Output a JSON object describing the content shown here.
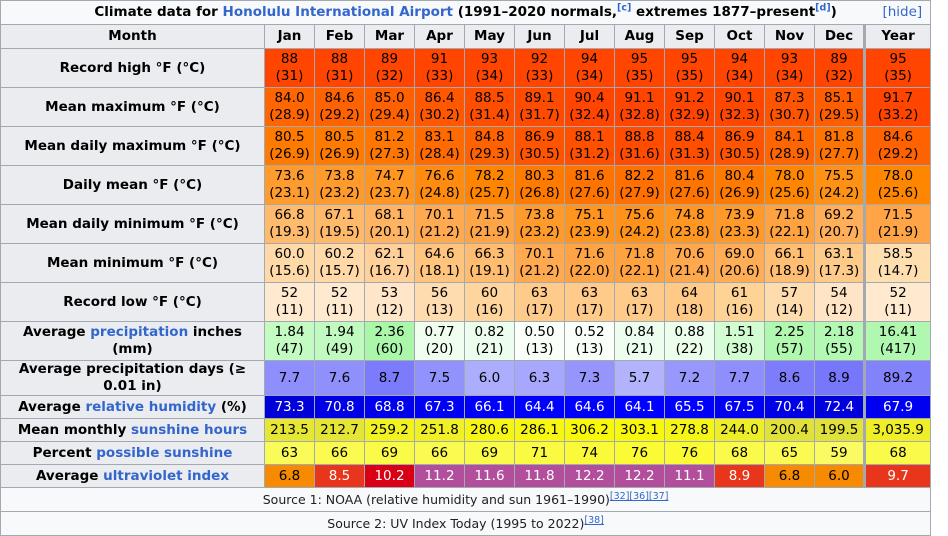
{
  "caption": {
    "prefix": "Climate data for ",
    "link": "Honolulu International Airport",
    "suffix1": " (1991–2020 normals,",
    "ref1": "[c]",
    "suffix2": " extremes 1877–present",
    "ref2": "[d]",
    "suffix3": ")",
    "hide": "[hide]"
  },
  "header": {
    "month_label": "Month",
    "months": [
      "Jan",
      "Feb",
      "Mar",
      "Apr",
      "May",
      "Jun",
      "Jul",
      "Aug",
      "Sep",
      "Oct",
      "Nov",
      "Dec"
    ],
    "year_label": "Year"
  },
  "rows": [
    {
      "label": "Record high °F (°C)",
      "two": true,
      "v": [
        "88",
        "88",
        "89",
        "91",
        "93",
        "92",
        "94",
        "95",
        "95",
        "94",
        "93",
        "89",
        "95"
      ],
      "c": [
        "(31)",
        "(31)",
        "(32)",
        "(33)",
        "(34)",
        "(33)",
        "(34)",
        "(35)",
        "(35)",
        "(34)",
        "(34)",
        "(32)",
        "(35)"
      ],
      "bg": [
        "#ff4500",
        "#ff4500",
        "#ff4500",
        "#ff4500",
        "#ff4500",
        "#ff4500",
        "#ff4500",
        "#ff4500",
        "#ff4500",
        "#ff4500",
        "#ff4500",
        "#ff4500",
        "#ff4500"
      ]
    },
    {
      "label": "Mean maximum °F (°C)",
      "two": true,
      "v": [
        "84.0",
        "84.6",
        "85.0",
        "86.4",
        "88.5",
        "89.1",
        "90.4",
        "91.1",
        "91.2",
        "90.1",
        "87.3",
        "85.1",
        "91.7"
      ],
      "c": [
        "(28.9)",
        "(29.2)",
        "(29.4)",
        "(30.2)",
        "(31.4)",
        "(31.7)",
        "(32.4)",
        "(32.8)",
        "(32.9)",
        "(32.3)",
        "(30.7)",
        "(29.5)",
        "(33.2)"
      ],
      "bg": [
        "#ff6500",
        "#ff6200",
        "#ff6000",
        "#ff5800",
        "#ff4e00",
        "#ff4b00",
        "#ff4500",
        "#ff4500",
        "#ff4500",
        "#ff4700",
        "#ff5400",
        "#ff5e00",
        "#ff4500"
      ]
    },
    {
      "label": "Mean daily maximum °F (°C)",
      "two": true,
      "v": [
        "80.5",
        "80.5",
        "81.2",
        "83.1",
        "84.8",
        "86.9",
        "88.1",
        "88.8",
        "88.4",
        "86.9",
        "84.1",
        "81.8",
        " 84.6"
      ],
      "c": [
        "(26.9)",
        "(26.9)",
        "(27.3)",
        "(28.4)",
        "(29.3)",
        "(30.5)",
        "(31.2)",
        "(31.6)",
        "(31.3)",
        "(30.5)",
        "(28.9)",
        "(27.7)",
        "(29.2)"
      ],
      "bg": [
        "#ff7a00",
        "#ff7a00",
        "#ff7600",
        "#ff6b00",
        "#ff6200",
        "#ff5500",
        "#ff5000",
        "#ff4c00",
        "#ff4e00",
        "#ff5500",
        "#ff6500",
        "#ff7300",
        "#ff6200"
      ]
    },
    {
      "label": "Daily mean °F (°C)",
      "two": true,
      "v": [
        "73.6",
        "73.8",
        "74.7",
        "76.6",
        "78.2",
        "80.3",
        "81.6",
        "82.2",
        "81.6",
        "80.4",
        "78.0",
        "75.5",
        "78.0"
      ],
      "c": [
        "(23.1)",
        "(23.2)",
        "(23.7)",
        "(24.8)",
        "(25.7)",
        "(26.8)",
        "(27.6)",
        "(27.9)",
        "(27.6)",
        "(26.9)",
        "(25.6)",
        "(24.2)",
        "(25.6)"
      ],
      "bg": [
        "#ff9c2f",
        "#ff9b2c",
        "#ff9722",
        "#ff8b0f",
        "#ff8400",
        "#ff7b00",
        "#ff7400",
        "#ff7000",
        "#ff7400",
        "#ff7a00",
        "#ff8600",
        "#ff9215",
        "#ff8600"
      ]
    },
    {
      "label": "Mean daily minimum °F (°C)",
      "two": true,
      "v": [
        "66.8",
        "67.1",
        "68.1",
        "70.1",
        "71.5",
        "73.8",
        "75.1",
        "75.6",
        "74.8",
        "73.9",
        "71.8",
        "69.2",
        "71.5"
      ],
      "c": [
        "(19.3)",
        "(19.5)",
        "(20.1)",
        "(21.2)",
        "(21.9)",
        "(23.2)",
        "(23.9)",
        "(24.2)",
        "(23.8)",
        "(23.3)",
        "(22.1)",
        "(20.7)",
        "(21.9)"
      ],
      "bg": [
        "#ffbb6d",
        "#ffb96b",
        "#ffb463",
        "#ffaa51",
        "#ffa547",
        "#ff9b2c",
        "#ff951f",
        "#ff921a",
        "#ff9722",
        "#ff9a2a",
        "#ffa341",
        "#ffaf59",
        "#ffa547"
      ]
    },
    {
      "label": "Mean minimum °F (°C)",
      "two": true,
      "v": [
        "60.0",
        "60.2",
        "62.1",
        "64.6",
        "66.3",
        "70.1",
        "71.6",
        "71.8",
        "70.6",
        "69.0",
        "66.1",
        "63.1",
        "58.5"
      ],
      "c": [
        "(15.6)",
        "(15.7)",
        "(16.7)",
        "(18.1)",
        "(19.1)",
        "(21.2)",
        "(22.0)",
        "(22.1)",
        "(21.4)",
        "(20.6)",
        "(18.9)",
        "(17.3)",
        "(14.7)"
      ],
      "bg": [
        "#ffdaa8",
        "#ffd9a7",
        "#ffd099",
        "#ffc57f",
        "#ffbd71",
        "#ffaa51",
        "#ffa444",
        "#ffa341",
        "#ffa84e",
        "#ffae57",
        "#ffbe72",
        "#ffcb8b",
        "#ffdfb0"
      ]
    },
    {
      "label": "Record low °F (°C)",
      "two": true,
      "v": [
        "52",
        "52",
        "53",
        "56",
        "60",
        "63",
        "63",
        "63",
        "64",
        "61",
        "57",
        "54",
        "52"
      ],
      "c": [
        "(11)",
        "(11)",
        "(12)",
        "(13)",
        "(16)",
        "(17)",
        "(17)",
        "(17)",
        "(18)",
        "(16)",
        "(14)",
        "(12)",
        "(11)"
      ],
      "bg": [
        "#ffe9cf",
        "#ffe9cf",
        "#ffe6c8",
        "#ffdcaf",
        "#ffd49d",
        "#ffcb8b",
        "#ffcb8b",
        "#ffcb8b",
        "#ffc988",
        "#ffd396",
        "#ffdcad",
        "#ffe5c6",
        "#ffe9cf"
      ]
    },
    {
      "label": "Average precipitation inches (mm)",
      "label_pre": "Average ",
      "label_link": "precipitation",
      "label_post": " inches (mm)",
      "two": true,
      "v": [
        "1.84",
        "1.94",
        "2.36",
        "0.77",
        "0.82",
        "0.50",
        "0.52",
        "0.84",
        "0.88",
        "1.51",
        "2.25",
        "2.18",
        "16.41"
      ],
      "c": [
        "(47)",
        "(49)",
        "(60)",
        "(20)",
        "(21)",
        "(13)",
        "(13)",
        "(21)",
        "(22)",
        "(38)",
        "(57)",
        "(55)",
        "(417)"
      ],
      "bg": [
        "#c3fbc3",
        "#c0fac0",
        "#aaf7aa",
        "#f0fef0",
        "#eefeee",
        "#fafffa",
        "#fafffa",
        "#eefeee",
        "#ecfeec",
        "#d2fcd2",
        "#b0f8b0",
        "#b3f8b3",
        "#b0f8b0"
      ]
    },
    {
      "label": "Average precipitation days (≥ 0.01 in)",
      "two": false,
      "v": [
        "7.7",
        "7.6",
        "8.7",
        "7.5",
        "6.0",
        "6.3",
        "7.3",
        "5.7",
        "7.2",
        "7.7",
        "8.6",
        "8.9",
        "89.2"
      ],
      "bg": [
        "#8e8efc",
        "#9090fc",
        "#7b7bfb",
        "#9292fc",
        "#adadfd",
        "#a7a7fd",
        "#9595fc",
        "#b2b2fd",
        "#9797fc",
        "#8e8efc",
        "#7d7dfb",
        "#7777fb",
        "#8282fb"
      ]
    },
    {
      "label": "Average relative humidity (%)",
      "label_pre": "Average ",
      "label_link": "relative humidity",
      "label_post": " (%)",
      "two": false,
      "white": true,
      "v": [
        "73.3",
        "70.8",
        "68.8",
        "67.3",
        "66.1",
        "64.4",
        "64.6",
        "64.1",
        "65.5",
        "67.5",
        "70.4",
        "72.4",
        "67.9"
      ],
      "bg": [
        "#0000d9",
        "#0000e4",
        "#0000ed",
        "#0000f4",
        "#0000f9",
        "#0000ff",
        "#0000ff",
        "#0000ff",
        "#0000fb",
        "#0000f3",
        "#0000e6",
        "#0000dd",
        "#0000f1"
      ]
    },
    {
      "label": "Mean monthly sunshine hours",
      "label_pre": "Mean monthly ",
      "label_link": "sunshine hours",
      "label_post": "",
      "two": false,
      "v": [
        "213.5",
        "212.7",
        "259.2",
        "251.8",
        "280.6",
        "286.1",
        "306.2",
        "303.1",
        "278.8",
        "244.0",
        "200.4",
        "199.5",
        "3,035.9"
      ],
      "bg": [
        "#e6e634",
        "#e5e535",
        "#f2f220",
        "#f0f024",
        "#f6f614",
        "#f7f712",
        "#f8f808",
        "#f8f80a",
        "#f6f616",
        "#eeee28",
        "#e1e13c",
        "#e1e13c",
        "#eeee29"
      ]
    },
    {
      "label": "Percent possible sunshine",
      "label_pre": "Percent ",
      "label_link": "possible sunshine",
      "label_post": "",
      "two": false,
      "v": [
        "63",
        "66",
        "69",
        "66",
        "69",
        "71",
        "74",
        "76",
        "76",
        "68",
        "65",
        "59",
        "68"
      ],
      "bg": [
        "#fafa59",
        "#fafa50",
        "#fafa48",
        "#fafa50",
        "#fafa48",
        "#fafa42",
        "#fafa3a",
        "#fafa35",
        "#fafa35",
        "#fafa4b",
        "#fafa53",
        "#fafa63",
        "#fafa4b"
      ]
    },
    {
      "label": "Average ultraviolet index",
      "label_pre": "Average ",
      "label_link": "ultraviolet index",
      "label_post": "",
      "two": false,
      "uv": true,
      "v": [
        "6.8",
        "8.5",
        "10.2",
        "11.2",
        "11.6",
        "11.8",
        "12.2",
        "12.2",
        "11.1",
        "8.9",
        "6.8",
        "6.0",
        "9.7"
      ],
      "bg": [
        "#f68a00",
        "#e8361c",
        "#d90016",
        "#b34e9c",
        "#b34e9c",
        "#b34e9c",
        "#b34e9c",
        "#b34e9c",
        "#b34e9c",
        "#e8361c",
        "#f68a00",
        "#f68a00",
        "#e8361c"
      ],
      "fg": [
        "#000",
        "#fff",
        "#fff",
        "#fff",
        "#fff",
        "#fff",
        "#fff",
        "#fff",
        "#fff",
        "#fff",
        "#000",
        "#000",
        "#fff"
      ]
    }
  ],
  "sources": [
    {
      "text": "Source 1: NOAA (relative humidity and sun 1961–1990)",
      "refs": "[32][36][37]"
    },
    {
      "text": "Source 2: UV Index Today (1995 to 2022)",
      "refs": "[38]"
    }
  ]
}
